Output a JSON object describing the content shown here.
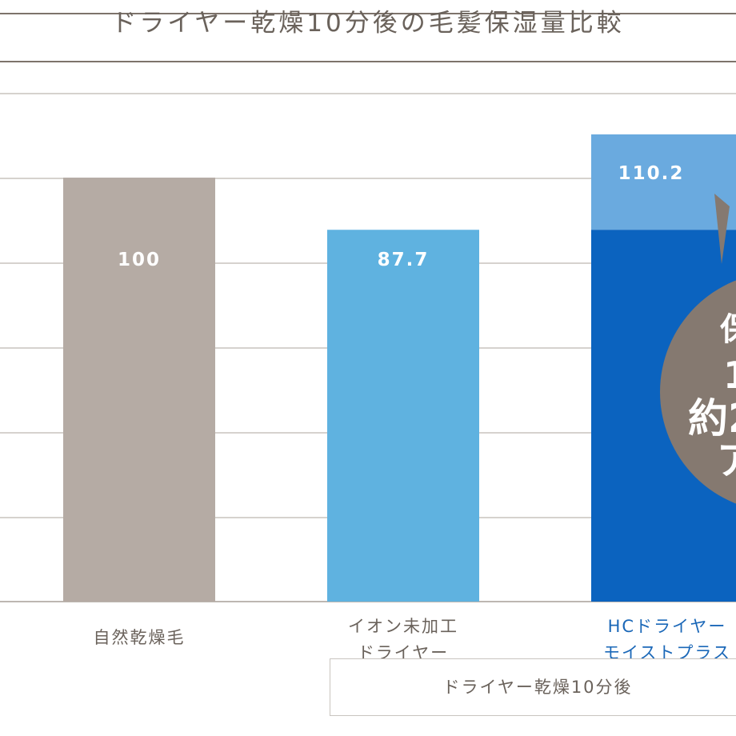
{
  "header": {
    "title": "ドライヤー乾燥10分後の毛髪保湿量比較"
  },
  "chart_data": {
    "type": "bar",
    "title": "ドライヤー乾燥10分後の毛髪保湿量比較",
    "categories": [
      {
        "lines": [
          "自然乾燥毛"
        ],
        "color": "#6a625b"
      },
      {
        "lines": [
          "イオン未加工",
          "ドライヤー"
        ],
        "color": "#6a625b"
      },
      {
        "lines": [
          "HCドライヤー",
          "モイストプラス"
        ],
        "color": "#1b68b8"
      }
    ],
    "series": [
      {
        "values": [
          100,
          87.7,
          110.2
        ],
        "labels": [
          "100",
          "87.7",
          "110.2"
        ]
      }
    ],
    "bar_colors": [
      "#b5aba4",
      "#5fb2e0",
      "#0b63bf"
    ],
    "highlight_color": "#6aaadf",
    "baseline_value": 87.7,
    "ylim": [
      0,
      110.2
    ],
    "grid": true,
    "group_label": "ドライヤー乾燥10分後",
    "badge": {
      "lines": [
        "保",
        "1",
        "約2",
        "ア"
      ],
      "color": "#857970"
    }
  }
}
